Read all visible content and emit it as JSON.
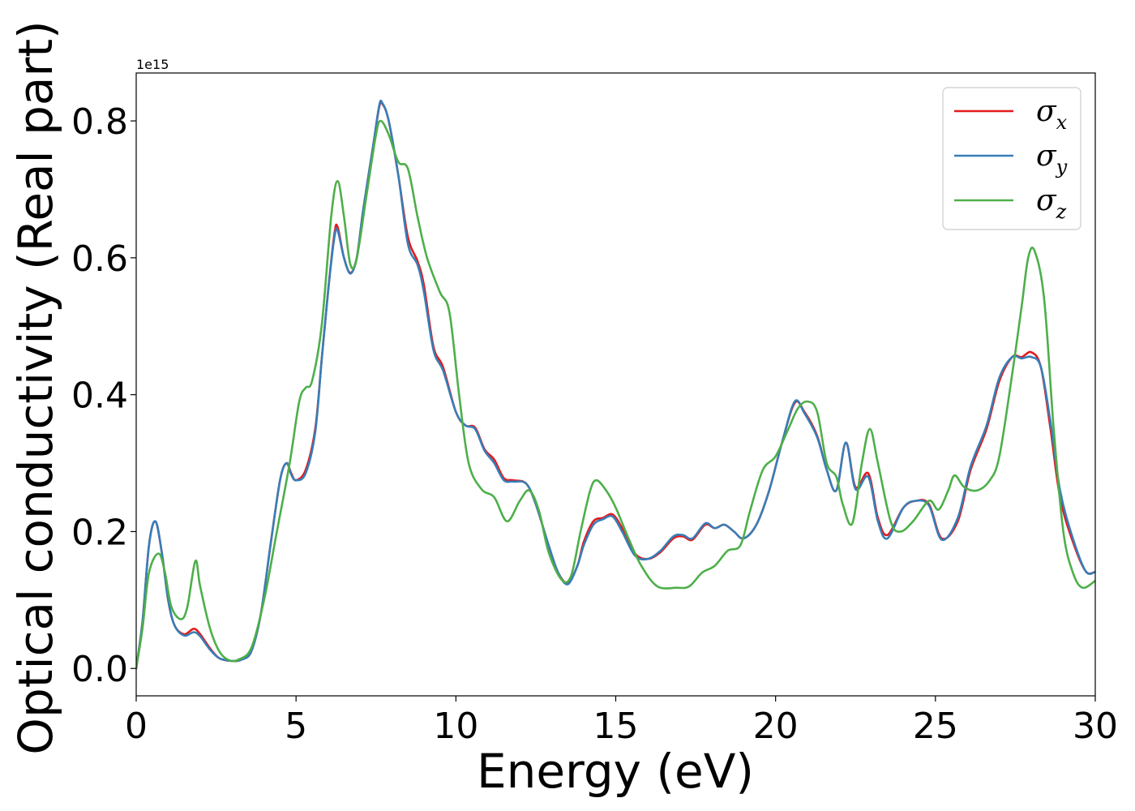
{
  "chart_data": {
    "type": "line",
    "xlabel": "Energy (eV)",
    "ylabel": "Optical conductivity (Real part)",
    "y_offset_label": "1e15",
    "xlim": [
      0,
      30
    ],
    "ylim": [
      -0.04,
      0.87
    ],
    "xticks": [
      0,
      5,
      10,
      15,
      20,
      25,
      30
    ],
    "yticks": [
      0.0,
      0.2,
      0.4,
      0.6,
      0.8
    ],
    "xtick_labels": [
      "0",
      "5",
      "10",
      "15",
      "20",
      "25",
      "30"
    ],
    "ytick_labels": [
      "0.0",
      "0.2",
      "0.4",
      "0.6",
      "0.8"
    ],
    "grid": false,
    "legend_position": "top-right",
    "series": [
      {
        "name": "σx",
        "legend_base": "σ",
        "legend_sub": "x",
        "color": "#e41a1c",
        "points": [
          [
            0,
            0
          ],
          [
            0.2,
            0.07
          ],
          [
            0.4,
            0.18
          ],
          [
            0.6,
            0.215
          ],
          [
            0.8,
            0.17
          ],
          [
            1.0,
            0.1
          ],
          [
            1.2,
            0.063
          ],
          [
            1.5,
            0.05
          ],
          [
            1.8,
            0.058
          ],
          [
            2.0,
            0.05
          ],
          [
            2.3,
            0.03
          ],
          [
            2.6,
            0.015
          ],
          [
            3.0,
            0.011
          ],
          [
            3.3,
            0.013
          ],
          [
            3.6,
            0.025
          ],
          [
            3.9,
            0.08
          ],
          [
            4.2,
            0.18
          ],
          [
            4.5,
            0.275
          ],
          [
            4.7,
            0.3
          ],
          [
            4.85,
            0.285
          ],
          [
            5.0,
            0.275
          ],
          [
            5.3,
            0.29
          ],
          [
            5.6,
            0.35
          ],
          [
            5.8,
            0.45
          ],
          [
            6.0,
            0.55
          ],
          [
            6.2,
            0.635
          ],
          [
            6.3,
            0.645
          ],
          [
            6.5,
            0.6
          ],
          [
            6.7,
            0.578
          ],
          [
            6.9,
            0.6
          ],
          [
            7.1,
            0.67
          ],
          [
            7.4,
            0.76
          ],
          [
            7.6,
            0.82
          ],
          [
            7.7,
            0.825
          ],
          [
            7.9,
            0.8
          ],
          [
            8.2,
            0.72
          ],
          [
            8.5,
            0.63
          ],
          [
            8.8,
            0.595
          ],
          [
            9.0,
            0.56
          ],
          [
            9.3,
            0.47
          ],
          [
            9.6,
            0.44
          ],
          [
            10.0,
            0.375
          ],
          [
            10.3,
            0.355
          ],
          [
            10.6,
            0.352
          ],
          [
            10.9,
            0.32
          ],
          [
            11.2,
            0.305
          ],
          [
            11.5,
            0.278
          ],
          [
            11.8,
            0.275
          ],
          [
            12.2,
            0.27
          ],
          [
            12.5,
            0.24
          ],
          [
            12.9,
            0.18
          ],
          [
            13.2,
            0.14
          ],
          [
            13.5,
            0.125
          ],
          [
            13.8,
            0.15
          ],
          [
            14.0,
            0.185
          ],
          [
            14.3,
            0.215
          ],
          [
            14.6,
            0.22
          ],
          [
            14.9,
            0.225
          ],
          [
            15.2,
            0.205
          ],
          [
            15.6,
            0.168
          ],
          [
            16.0,
            0.16
          ],
          [
            16.4,
            0.17
          ],
          [
            16.8,
            0.19
          ],
          [
            17.1,
            0.193
          ],
          [
            17.4,
            0.188
          ],
          [
            17.8,
            0.21
          ],
          [
            18.1,
            0.205
          ],
          [
            18.4,
            0.21
          ],
          [
            18.7,
            0.2
          ],
          [
            19.0,
            0.19
          ],
          [
            19.4,
            0.21
          ],
          [
            19.8,
            0.26
          ],
          [
            20.2,
            0.33
          ],
          [
            20.6,
            0.388
          ],
          [
            20.9,
            0.375
          ],
          [
            21.3,
            0.34
          ],
          [
            21.6,
            0.29
          ],
          [
            21.9,
            0.26
          ],
          [
            22.2,
            0.33
          ],
          [
            22.5,
            0.265
          ],
          [
            22.9,
            0.285
          ],
          [
            23.2,
            0.22
          ],
          [
            23.5,
            0.195
          ],
          [
            24.0,
            0.235
          ],
          [
            24.4,
            0.245
          ],
          [
            24.8,
            0.24
          ],
          [
            25.2,
            0.19
          ],
          [
            25.7,
            0.215
          ],
          [
            26.1,
            0.29
          ],
          [
            26.6,
            0.35
          ],
          [
            27.0,
            0.42
          ],
          [
            27.4,
            0.455
          ],
          [
            27.7,
            0.455
          ],
          [
            28.0,
            0.462
          ],
          [
            28.3,
            0.44
          ],
          [
            28.6,
            0.35
          ],
          [
            28.9,
            0.25
          ],
          [
            29.3,
            0.185
          ],
          [
            29.7,
            0.142
          ],
          [
            30.0,
            0.141
          ]
        ]
      },
      {
        "name": "σy",
        "legend_base": "σ",
        "legend_sub": "y",
        "color": "#377eb8",
        "points": [
          [
            0,
            0
          ],
          [
            0.2,
            0.07
          ],
          [
            0.4,
            0.18
          ],
          [
            0.6,
            0.215
          ],
          [
            0.8,
            0.17
          ],
          [
            1.0,
            0.1
          ],
          [
            1.2,
            0.063
          ],
          [
            1.5,
            0.048
          ],
          [
            1.8,
            0.053
          ],
          [
            2.0,
            0.047
          ],
          [
            2.3,
            0.028
          ],
          [
            2.6,
            0.015
          ],
          [
            3.0,
            0.011
          ],
          [
            3.3,
            0.013
          ],
          [
            3.6,
            0.025
          ],
          [
            3.9,
            0.08
          ],
          [
            4.2,
            0.18
          ],
          [
            4.5,
            0.275
          ],
          [
            4.7,
            0.3
          ],
          [
            4.85,
            0.283
          ],
          [
            5.0,
            0.275
          ],
          [
            5.3,
            0.285
          ],
          [
            5.6,
            0.345
          ],
          [
            5.8,
            0.45
          ],
          [
            6.0,
            0.55
          ],
          [
            6.2,
            0.63
          ],
          [
            6.3,
            0.64
          ],
          [
            6.5,
            0.6
          ],
          [
            6.7,
            0.577
          ],
          [
            6.9,
            0.6
          ],
          [
            7.1,
            0.67
          ],
          [
            7.4,
            0.76
          ],
          [
            7.6,
            0.822
          ],
          [
            7.7,
            0.826
          ],
          [
            7.9,
            0.8
          ],
          [
            8.2,
            0.72
          ],
          [
            8.5,
            0.62
          ],
          [
            8.8,
            0.59
          ],
          [
            9.0,
            0.55
          ],
          [
            9.3,
            0.465
          ],
          [
            9.6,
            0.435
          ],
          [
            10.0,
            0.375
          ],
          [
            10.3,
            0.355
          ],
          [
            10.6,
            0.35
          ],
          [
            10.9,
            0.318
          ],
          [
            11.2,
            0.3
          ],
          [
            11.5,
            0.275
          ],
          [
            11.8,
            0.273
          ],
          [
            12.2,
            0.27
          ],
          [
            12.5,
            0.24
          ],
          [
            12.9,
            0.18
          ],
          [
            13.2,
            0.14
          ],
          [
            13.5,
            0.123
          ],
          [
            13.8,
            0.15
          ],
          [
            14.0,
            0.18
          ],
          [
            14.3,
            0.21
          ],
          [
            14.6,
            0.218
          ],
          [
            14.9,
            0.222
          ],
          [
            15.2,
            0.2
          ],
          [
            15.6,
            0.165
          ],
          [
            16.0,
            0.16
          ],
          [
            16.4,
            0.172
          ],
          [
            16.8,
            0.193
          ],
          [
            17.1,
            0.195
          ],
          [
            17.4,
            0.19
          ],
          [
            17.8,
            0.212
          ],
          [
            18.1,
            0.205
          ],
          [
            18.4,
            0.21
          ],
          [
            18.7,
            0.2
          ],
          [
            19.0,
            0.19
          ],
          [
            19.4,
            0.21
          ],
          [
            19.8,
            0.26
          ],
          [
            20.2,
            0.33
          ],
          [
            20.6,
            0.39
          ],
          [
            20.9,
            0.373
          ],
          [
            21.3,
            0.338
          ],
          [
            21.6,
            0.29
          ],
          [
            21.9,
            0.26
          ],
          [
            22.2,
            0.33
          ],
          [
            22.5,
            0.262
          ],
          [
            22.9,
            0.28
          ],
          [
            23.2,
            0.215
          ],
          [
            23.5,
            0.19
          ],
          [
            24.0,
            0.235
          ],
          [
            24.4,
            0.245
          ],
          [
            24.8,
            0.238
          ],
          [
            25.2,
            0.188
          ],
          [
            25.7,
            0.22
          ],
          [
            26.1,
            0.295
          ],
          [
            26.6,
            0.355
          ],
          [
            27.0,
            0.425
          ],
          [
            27.4,
            0.455
          ],
          [
            27.7,
            0.453
          ],
          [
            28.0,
            0.455
          ],
          [
            28.3,
            0.44
          ],
          [
            28.6,
            0.36
          ],
          [
            28.9,
            0.26
          ],
          [
            29.3,
            0.19
          ],
          [
            29.7,
            0.142
          ],
          [
            30.0,
            0.141
          ]
        ]
      },
      {
        "name": "σz",
        "legend_base": "σ",
        "legend_sub": "z",
        "color": "#4daf4a",
        "points": [
          [
            0,
            0
          ],
          [
            0.2,
            0.06
          ],
          [
            0.4,
            0.14
          ],
          [
            0.7,
            0.168
          ],
          [
            0.9,
            0.14
          ],
          [
            1.1,
            0.09
          ],
          [
            1.4,
            0.072
          ],
          [
            1.6,
            0.09
          ],
          [
            1.85,
            0.157
          ],
          [
            2.0,
            0.12
          ],
          [
            2.3,
            0.06
          ],
          [
            2.6,
            0.025
          ],
          [
            2.9,
            0.012
          ],
          [
            3.2,
            0.013
          ],
          [
            3.6,
            0.03
          ],
          [
            4.0,
            0.1
          ],
          [
            4.4,
            0.2
          ],
          [
            4.8,
            0.3
          ],
          [
            5.1,
            0.39
          ],
          [
            5.3,
            0.41
          ],
          [
            5.5,
            0.42
          ],
          [
            5.8,
            0.5
          ],
          [
            6.1,
            0.66
          ],
          [
            6.3,
            0.712
          ],
          [
            6.5,
            0.66
          ],
          [
            6.7,
            0.59
          ],
          [
            6.9,
            0.6
          ],
          [
            7.2,
            0.69
          ],
          [
            7.5,
            0.78
          ],
          [
            7.65,
            0.8
          ],
          [
            7.9,
            0.78
          ],
          [
            8.2,
            0.74
          ],
          [
            8.5,
            0.73
          ],
          [
            8.8,
            0.66
          ],
          [
            9.1,
            0.6
          ],
          [
            9.5,
            0.55
          ],
          [
            9.8,
            0.52
          ],
          [
            10.1,
            0.4
          ],
          [
            10.4,
            0.3
          ],
          [
            10.8,
            0.262
          ],
          [
            11.2,
            0.25
          ],
          [
            11.6,
            0.215
          ],
          [
            12.0,
            0.245
          ],
          [
            12.3,
            0.26
          ],
          [
            12.6,
            0.23
          ],
          [
            12.9,
            0.17
          ],
          [
            13.3,
            0.13
          ],
          [
            13.6,
            0.135
          ],
          [
            13.9,
            0.2
          ],
          [
            14.2,
            0.26
          ],
          [
            14.4,
            0.275
          ],
          [
            14.7,
            0.26
          ],
          [
            15.0,
            0.235
          ],
          [
            15.4,
            0.19
          ],
          [
            15.8,
            0.15
          ],
          [
            16.3,
            0.12
          ],
          [
            16.9,
            0.118
          ],
          [
            17.3,
            0.12
          ],
          [
            17.7,
            0.14
          ],
          [
            18.1,
            0.15
          ],
          [
            18.5,
            0.172
          ],
          [
            18.9,
            0.18
          ],
          [
            19.2,
            0.23
          ],
          [
            19.6,
            0.29
          ],
          [
            20.0,
            0.31
          ],
          [
            20.4,
            0.35
          ],
          [
            20.7,
            0.38
          ],
          [
            21.0,
            0.39
          ],
          [
            21.3,
            0.375
          ],
          [
            21.6,
            0.3
          ],
          [
            21.9,
            0.28
          ],
          [
            22.1,
            0.24
          ],
          [
            22.4,
            0.212
          ],
          [
            22.7,
            0.3
          ],
          [
            22.95,
            0.35
          ],
          [
            23.2,
            0.3
          ],
          [
            23.6,
            0.215
          ],
          [
            23.9,
            0.2
          ],
          [
            24.3,
            0.215
          ],
          [
            24.8,
            0.245
          ],
          [
            25.1,
            0.232
          ],
          [
            25.4,
            0.26
          ],
          [
            25.6,
            0.282
          ],
          [
            25.9,
            0.265
          ],
          [
            26.3,
            0.26
          ],
          [
            26.7,
            0.275
          ],
          [
            27.0,
            0.31
          ],
          [
            27.4,
            0.43
          ],
          [
            27.7,
            0.53
          ],
          [
            27.9,
            0.6
          ],
          [
            28.1,
            0.61
          ],
          [
            28.4,
            0.54
          ],
          [
            28.7,
            0.35
          ],
          [
            29.0,
            0.2
          ],
          [
            29.3,
            0.14
          ],
          [
            29.6,
            0.118
          ],
          [
            30.0,
            0.128
          ]
        ]
      }
    ]
  }
}
